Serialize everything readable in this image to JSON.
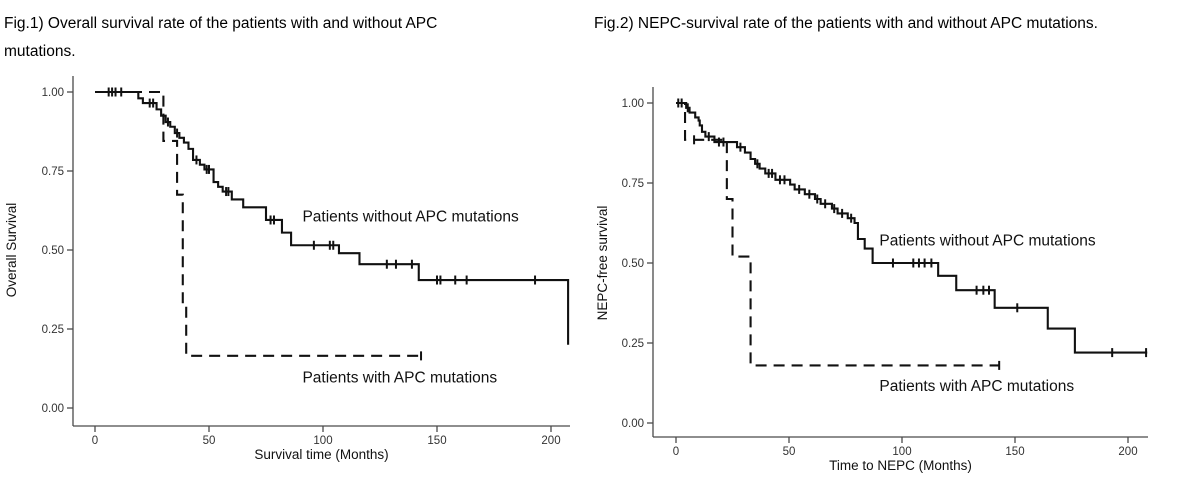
{
  "figure": {
    "background": "#ffffff",
    "curve_color": "#111111",
    "axis_color": "#4a4a4a"
  },
  "chart_data": [
    {
      "type": "line",
      "subtype": "kaplan-meier-step",
      "title": "Fig.1) Overall survival rate of the patients with and without APC mutations.",
      "xlabel": "Survival time (Months)",
      "ylabel": "Overall Survival",
      "xticks": [
        0,
        50,
        100,
        150,
        200
      ],
      "yticks": [
        1.0,
        0.75,
        0.5,
        0.25,
        0.0
      ],
      "xlim": [
        0,
        210
      ],
      "ylim": [
        0,
        1
      ],
      "grid": false,
      "legend": "inline-annotations",
      "series": [
        {
          "name": "Patients without APC mutations",
          "line": "solid",
          "color": "#111111",
          "label_at": [
            91,
            0.59
          ],
          "steps": [
            [
              0,
              1.0
            ],
            [
              19,
              0.98
            ],
            [
              21,
              0.965
            ],
            [
              27,
              0.945
            ],
            [
              29,
              0.925
            ],
            [
              31,
              0.905
            ],
            [
              33,
              0.89
            ],
            [
              35,
              0.87
            ],
            [
              37,
              0.855
            ],
            [
              39,
              0.84
            ],
            [
              41,
              0.82
            ],
            [
              43,
              0.785
            ],
            [
              46,
              0.77
            ],
            [
              48,
              0.755
            ],
            [
              52,
              0.715
            ],
            [
              54,
              0.7
            ],
            [
              56,
              0.685
            ],
            [
              60,
              0.66
            ],
            [
              65,
              0.635
            ],
            [
              75,
              0.595
            ],
            [
              82,
              0.555
            ],
            [
              86,
              0.515
            ],
            [
              107,
              0.49
            ],
            [
              116,
              0.455
            ],
            [
              142,
              0.405
            ],
            [
              207.5,
              0.2
            ]
          ],
          "censors": [
            [
              6,
              1.0
            ],
            [
              7.5,
              1.0
            ],
            [
              9,
              1.0
            ],
            [
              11.5,
              1.0
            ],
            [
              24,
              0.965
            ],
            [
              25.5,
              0.965
            ],
            [
              32,
              0.905
            ],
            [
              36,
              0.87
            ],
            [
              44.5,
              0.785
            ],
            [
              49,
              0.755
            ],
            [
              50,
              0.755
            ],
            [
              57.5,
              0.685
            ],
            [
              58.5,
              0.685
            ],
            [
              77,
              0.595
            ],
            [
              78.5,
              0.595
            ],
            [
              96,
              0.515
            ],
            [
              103,
              0.515
            ],
            [
              104.5,
              0.515
            ],
            [
              128,
              0.455
            ],
            [
              132,
              0.455
            ],
            [
              139,
              0.455
            ],
            [
              150,
              0.405
            ],
            [
              151.5,
              0.405
            ],
            [
              158,
              0.405
            ],
            [
              163,
              0.405
            ],
            [
              193,
              0.405
            ]
          ]
        },
        {
          "name": "Patients with APC mutations",
          "line": "dashed",
          "color": "#111111",
          "label_at": [
            91,
            0.08
          ],
          "steps": [
            [
              0,
              1.0
            ],
            [
              30,
              0.845
            ],
            [
              36,
              0.675
            ],
            [
              38.5,
              0.335
            ],
            [
              40,
              0.165
            ],
            [
              143,
              0.165
            ]
          ],
          "censors": [
            [
              143,
              0.165
            ]
          ]
        }
      ]
    },
    {
      "type": "line",
      "subtype": "kaplan-meier-step",
      "title": "Fig.2) NEPC-survival rate of the patients with and without APC mutations.",
      "xlabel": "Time to NEPC (Months)",
      "ylabel": "NEPC-free survival",
      "xticks": [
        0,
        50,
        100,
        150,
        200
      ],
      "yticks": [
        1.0,
        0.75,
        0.5,
        0.25,
        0.0
      ],
      "xlim": [
        0,
        210
      ],
      "ylim": [
        0,
        1
      ],
      "grid": false,
      "legend": "inline-annotations",
      "series": [
        {
          "name": "Patients without APC mutations",
          "line": "solid",
          "color": "#111111",
          "label_at": [
            90,
            0.555
          ],
          "steps": [
            [
              0,
              1.0
            ],
            [
              4.5,
              0.985
            ],
            [
              6,
              0.97
            ],
            [
              8.5,
              0.955
            ],
            [
              10,
              0.945
            ],
            [
              10.5,
              0.93
            ],
            [
              11.5,
              0.91
            ],
            [
              13,
              0.895
            ],
            [
              17,
              0.878
            ],
            [
              27,
              0.862
            ],
            [
              30.5,
              0.845
            ],
            [
              33,
              0.825
            ],
            [
              35,
              0.81
            ],
            [
              37,
              0.795
            ],
            [
              39.5,
              0.78
            ],
            [
              44,
              0.76
            ],
            [
              50.5,
              0.745
            ],
            [
              52.5,
              0.73
            ],
            [
              57,
              0.715
            ],
            [
              61.5,
              0.7
            ],
            [
              64,
              0.685
            ],
            [
              69,
              0.67
            ],
            [
              71.5,
              0.655
            ],
            [
              76,
              0.64
            ],
            [
              79,
              0.625
            ],
            [
              80.5,
              0.575
            ],
            [
              83.5,
              0.545
            ],
            [
              87,
              0.5
            ],
            [
              116,
              0.46
            ],
            [
              124,
              0.415
            ],
            [
              141,
              0.36
            ],
            [
              164.5,
              0.295
            ],
            [
              176.5,
              0.22
            ],
            [
              208.5,
              0.22
            ]
          ],
          "censors": [
            [
              1,
              1.0
            ],
            [
              2.5,
              1.0
            ],
            [
              5.2,
              0.985
            ],
            [
              14.5,
              0.895
            ],
            [
              19,
              0.878
            ],
            [
              21,
              0.878
            ],
            [
              28.5,
              0.862
            ],
            [
              36,
              0.81
            ],
            [
              41,
              0.78
            ],
            [
              42.5,
              0.78
            ],
            [
              46,
              0.76
            ],
            [
              48,
              0.76
            ],
            [
              54.5,
              0.73
            ],
            [
              59,
              0.715
            ],
            [
              62.5,
              0.7
            ],
            [
              66,
              0.685
            ],
            [
              70,
              0.67
            ],
            [
              73.5,
              0.655
            ],
            [
              77.5,
              0.64
            ],
            [
              96,
              0.5
            ],
            [
              105,
              0.5
            ],
            [
              107.5,
              0.5
            ],
            [
              110,
              0.5
            ],
            [
              113,
              0.5
            ],
            [
              133,
              0.415
            ],
            [
              136,
              0.415
            ],
            [
              138.5,
              0.415
            ],
            [
              151,
              0.36
            ],
            [
              193,
              0.22
            ],
            [
              208,
              0.22
            ]
          ]
        },
        {
          "name": "Patients with APC mutations",
          "line": "dashed",
          "color": "#111111",
          "label_at": [
            90,
            0.1
          ],
          "steps": [
            [
              0,
              1.0
            ],
            [
              4,
              0.885
            ],
            [
              22.5,
              0.7
            ],
            [
              25,
              0.52
            ],
            [
              33,
              0.18
            ],
            [
              143,
              0.18
            ]
          ],
          "censors": [
            [
              8,
              0.885
            ],
            [
              143,
              0.18
            ]
          ]
        }
      ]
    }
  ]
}
